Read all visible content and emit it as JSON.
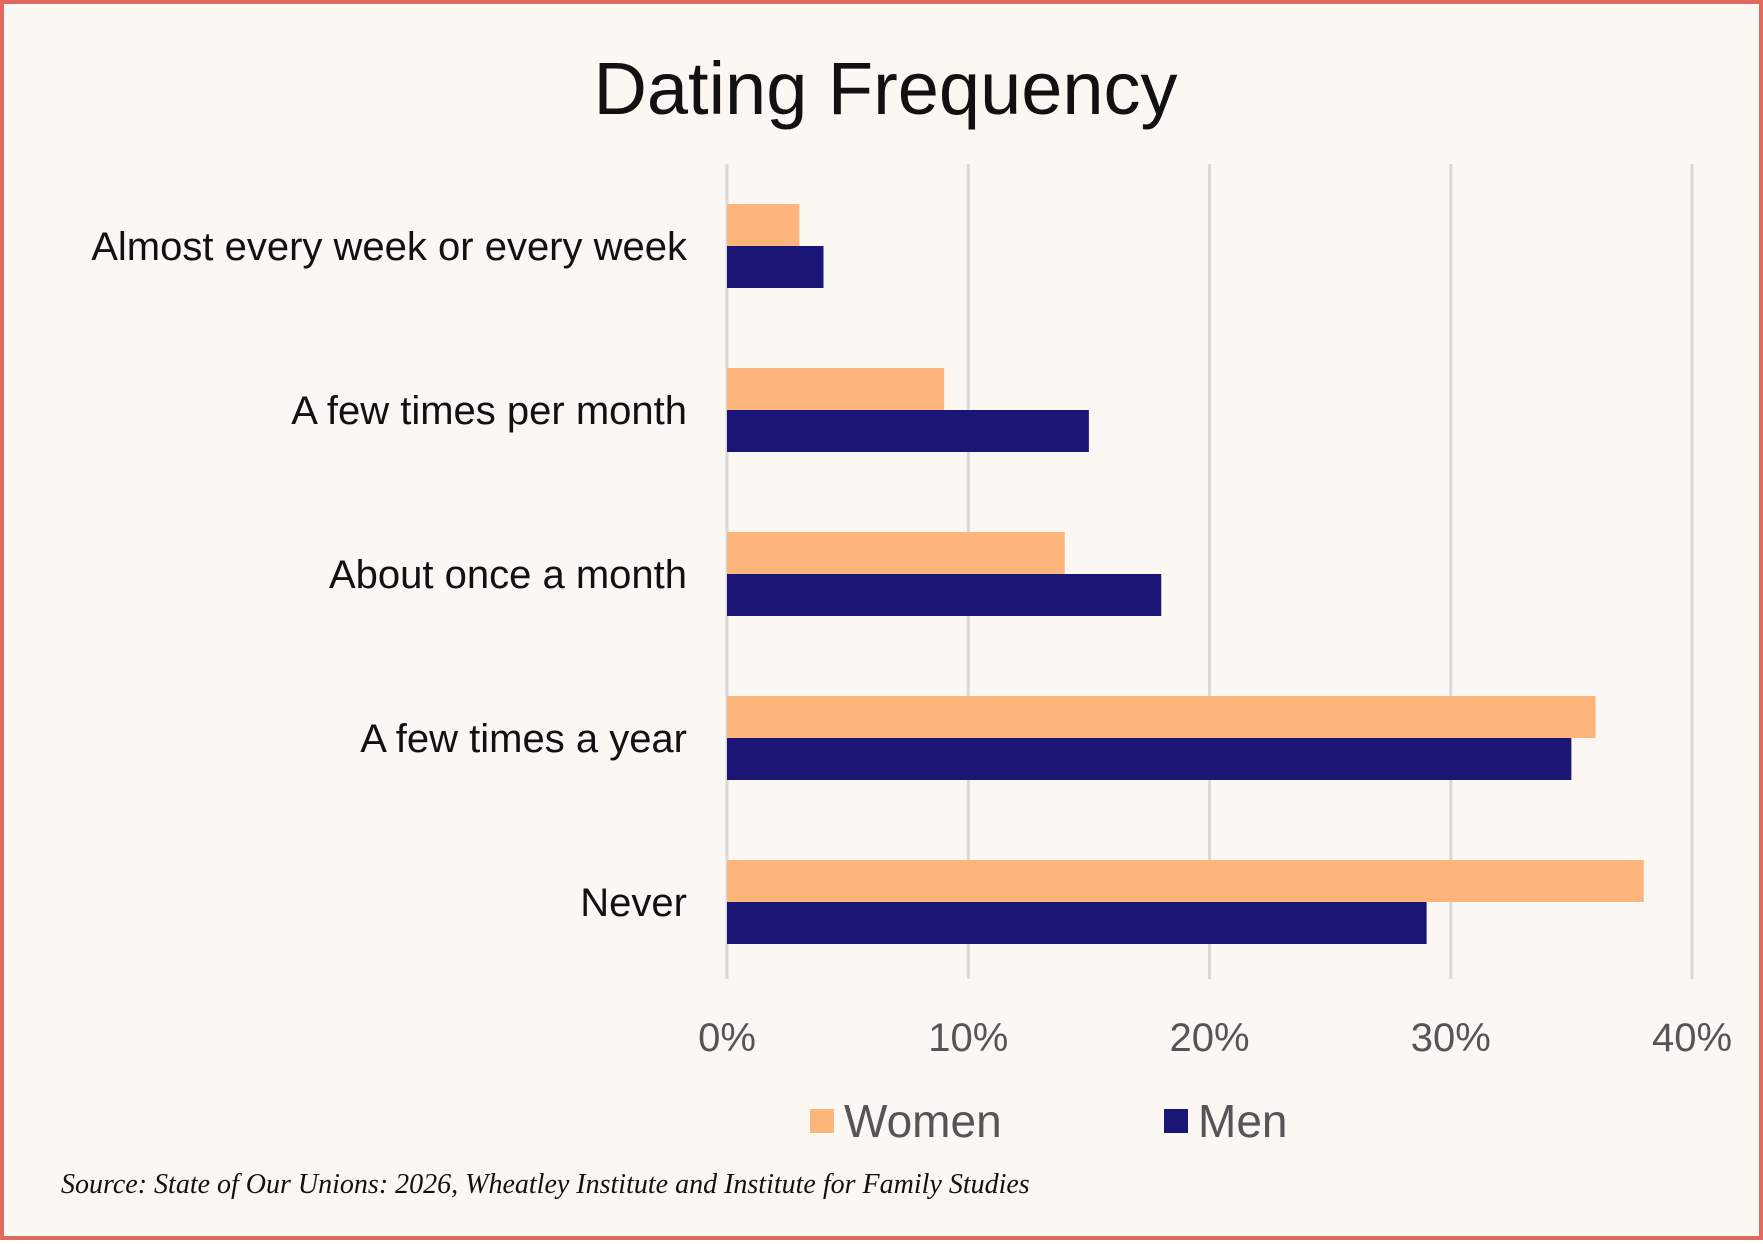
{
  "chart_data": {
    "type": "bar",
    "orientation": "horizontal",
    "title": "Dating Frequency",
    "categories": [
      "Almost every week or every week",
      "A few times per month",
      "About once a month",
      "A few times a year",
      "Never"
    ],
    "series": [
      {
        "name": "Women",
        "color": "#fdb57b",
        "values": [
          3,
          9,
          14,
          36,
          38
        ]
      },
      {
        "name": "Men",
        "color": "#1b1676",
        "values": [
          4,
          15,
          18,
          35,
          29
        ]
      }
    ],
    "xlim": [
      0,
      40
    ],
    "x_ticks": [
      "0%",
      "10%",
      "20%",
      "30%",
      "40%"
    ],
    "unit": "%",
    "grid": "vertical",
    "legend_position": "bottom"
  },
  "source": "Source: State of Our Unions: 2026, Wheatley Institute and Institute for Family Studies"
}
